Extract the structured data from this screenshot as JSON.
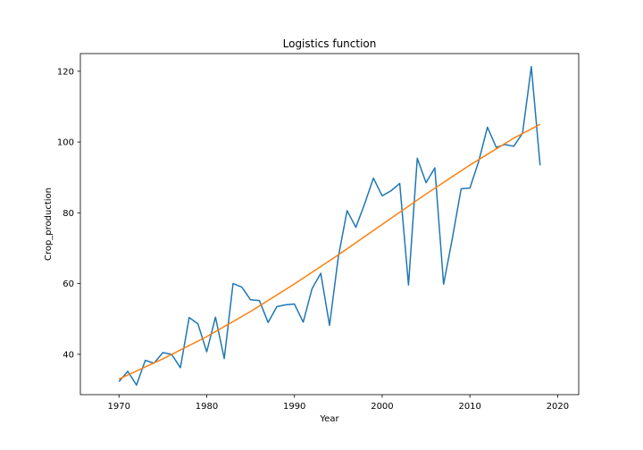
{
  "chart_data": {
    "type": "line",
    "title": "Logistics function",
    "xlabel": "Year",
    "ylabel": "Crop_production",
    "xlim": [
      1965.6,
      2022.4
    ],
    "ylim": [
      28.6,
      125.0
    ],
    "xticks": [
      1970,
      1980,
      1990,
      2000,
      2010,
      2020
    ],
    "yticks": [
      40,
      60,
      80,
      100,
      120
    ],
    "grid": false,
    "series": [
      {
        "color": "#1f77b4",
        "x": [
          1970,
          1971,
          1972,
          1973,
          1974,
          1975,
          1976,
          1977,
          1978,
          1979,
          1980,
          1981,
          1982,
          1983,
          1984,
          1985,
          1986,
          1987,
          1988,
          1989,
          1990,
          1991,
          1992,
          1993,
          1994,
          1995,
          1996,
          1997,
          1998,
          1999,
          2000,
          2001,
          2002,
          2003,
          2004,
          2005,
          2006,
          2007,
          2008,
          2009,
          2010,
          2011,
          2012,
          2013,
          2014,
          2015,
          2016,
          2017,
          2018
        ],
        "y": [
          32.3,
          35.2,
          31.3,
          38.3,
          37.5,
          40.5,
          40.0,
          36.2,
          50.4,
          48.6,
          40.7,
          50.5,
          38.8,
          60.0,
          59.0,
          55.4,
          55.2,
          49.0,
          53.5,
          54.0,
          54.2,
          49.1,
          58.5,
          62.9,
          48.2,
          67.5,
          80.6,
          75.9,
          82.5,
          89.8,
          84.8,
          86.2,
          88.3,
          59.6,
          95.4,
          88.5,
          92.7,
          59.8,
          72.8,
          86.8,
          87.0,
          94.5,
          104.2,
          98.5,
          99.3,
          98.8,
          102.5,
          121.3,
          93.4
        ]
      },
      {
        "color": "#ff7f0e",
        "x": [
          1970,
          1975,
          1980,
          1985,
          1990,
          1995,
          2000,
          2005,
          2010,
          2015,
          2018
        ],
        "y": [
          33.0,
          38.7,
          45.0,
          52.1,
          59.9,
          68.1,
          76.7,
          85.3,
          93.5,
          101.1,
          105.0
        ]
      }
    ]
  }
}
